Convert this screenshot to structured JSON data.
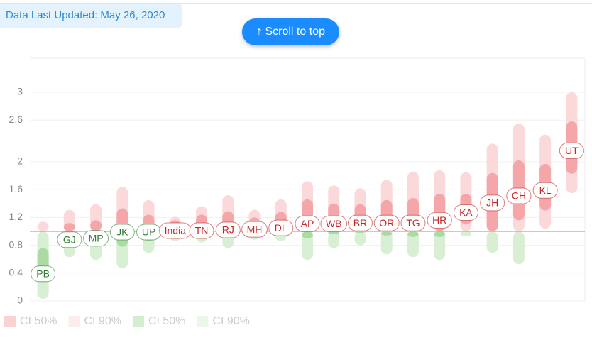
{
  "header": {
    "updated": "Data Last Updated: May 26, 2020",
    "scroll_button": "↑ Scroll to top"
  },
  "chart_data": {
    "type": "range",
    "categories": [
      "PB",
      "GJ",
      "MP",
      "JK",
      "UP",
      "India",
      "TN",
      "RJ",
      "MH",
      "DL",
      "AP",
      "WB",
      "BR",
      "OR",
      "TG",
      "HR",
      "KA",
      "JH",
      "CH",
      "KL",
      "UT"
    ],
    "values": [
      0.39,
      0.88,
      0.9,
      0.99,
      0.99,
      1.01,
      1.01,
      1.02,
      1.03,
      1.05,
      1.11,
      1.11,
      1.12,
      1.12,
      1.12,
      1.16,
      1.27,
      1.41,
      1.51,
      1.59,
      2.16
    ],
    "ci50_low": [
      0.27,
      0.78,
      0.78,
      0.78,
      0.86,
      0.95,
      0.94,
      0.92,
      0.96,
      0.96,
      0.9,
      0.96,
      0.98,
      0.94,
      0.92,
      0.92,
      1.1,
      1.0,
      1.16,
      1.3,
      1.83
    ],
    "ci50_high": [
      0.76,
      1.12,
      1.16,
      1.33,
      1.24,
      1.16,
      1.24,
      1.29,
      1.2,
      1.28,
      1.46,
      1.4,
      1.39,
      1.45,
      1.48,
      1.54,
      1.54,
      1.84,
      2.02,
      1.97,
      2.58
    ],
    "ci90_low": [
      0.03,
      0.63,
      0.59,
      0.47,
      0.69,
      0.86,
      0.84,
      0.76,
      0.88,
      0.86,
      0.59,
      0.76,
      0.8,
      0.67,
      0.63,
      0.59,
      0.93,
      0.69,
      0.53,
      1.04,
      1.55
    ],
    "ci90_high": [
      1.14,
      1.31,
      1.39,
      1.64,
      1.45,
      1.21,
      1.36,
      1.52,
      1.31,
      1.46,
      1.72,
      1.66,
      1.62,
      1.74,
      1.86,
      1.88,
      1.85,
      2.26,
      2.55,
      2.39,
      3.0
    ],
    "threshold": 1,
    "ylim": [
      0,
      3.49
    ],
    "yticks": [
      0,
      0.4,
      0.8,
      1.2,
      1.6,
      2,
      2.6,
      3
    ],
    "grid": true,
    "colors": {
      "above": "#c62828",
      "below": "#2e7d32",
      "line": "#f0a0a0"
    },
    "legend": [
      {
        "label": "CI 50%",
        "color": "#f4a6a8"
      },
      {
        "label": "CI 90%",
        "color": "#fbd9da"
      },
      {
        "label": "CI 50%",
        "color": "#a9dba2"
      },
      {
        "label": "CI 90%",
        "color": "#d8efd4"
      }
    ]
  }
}
